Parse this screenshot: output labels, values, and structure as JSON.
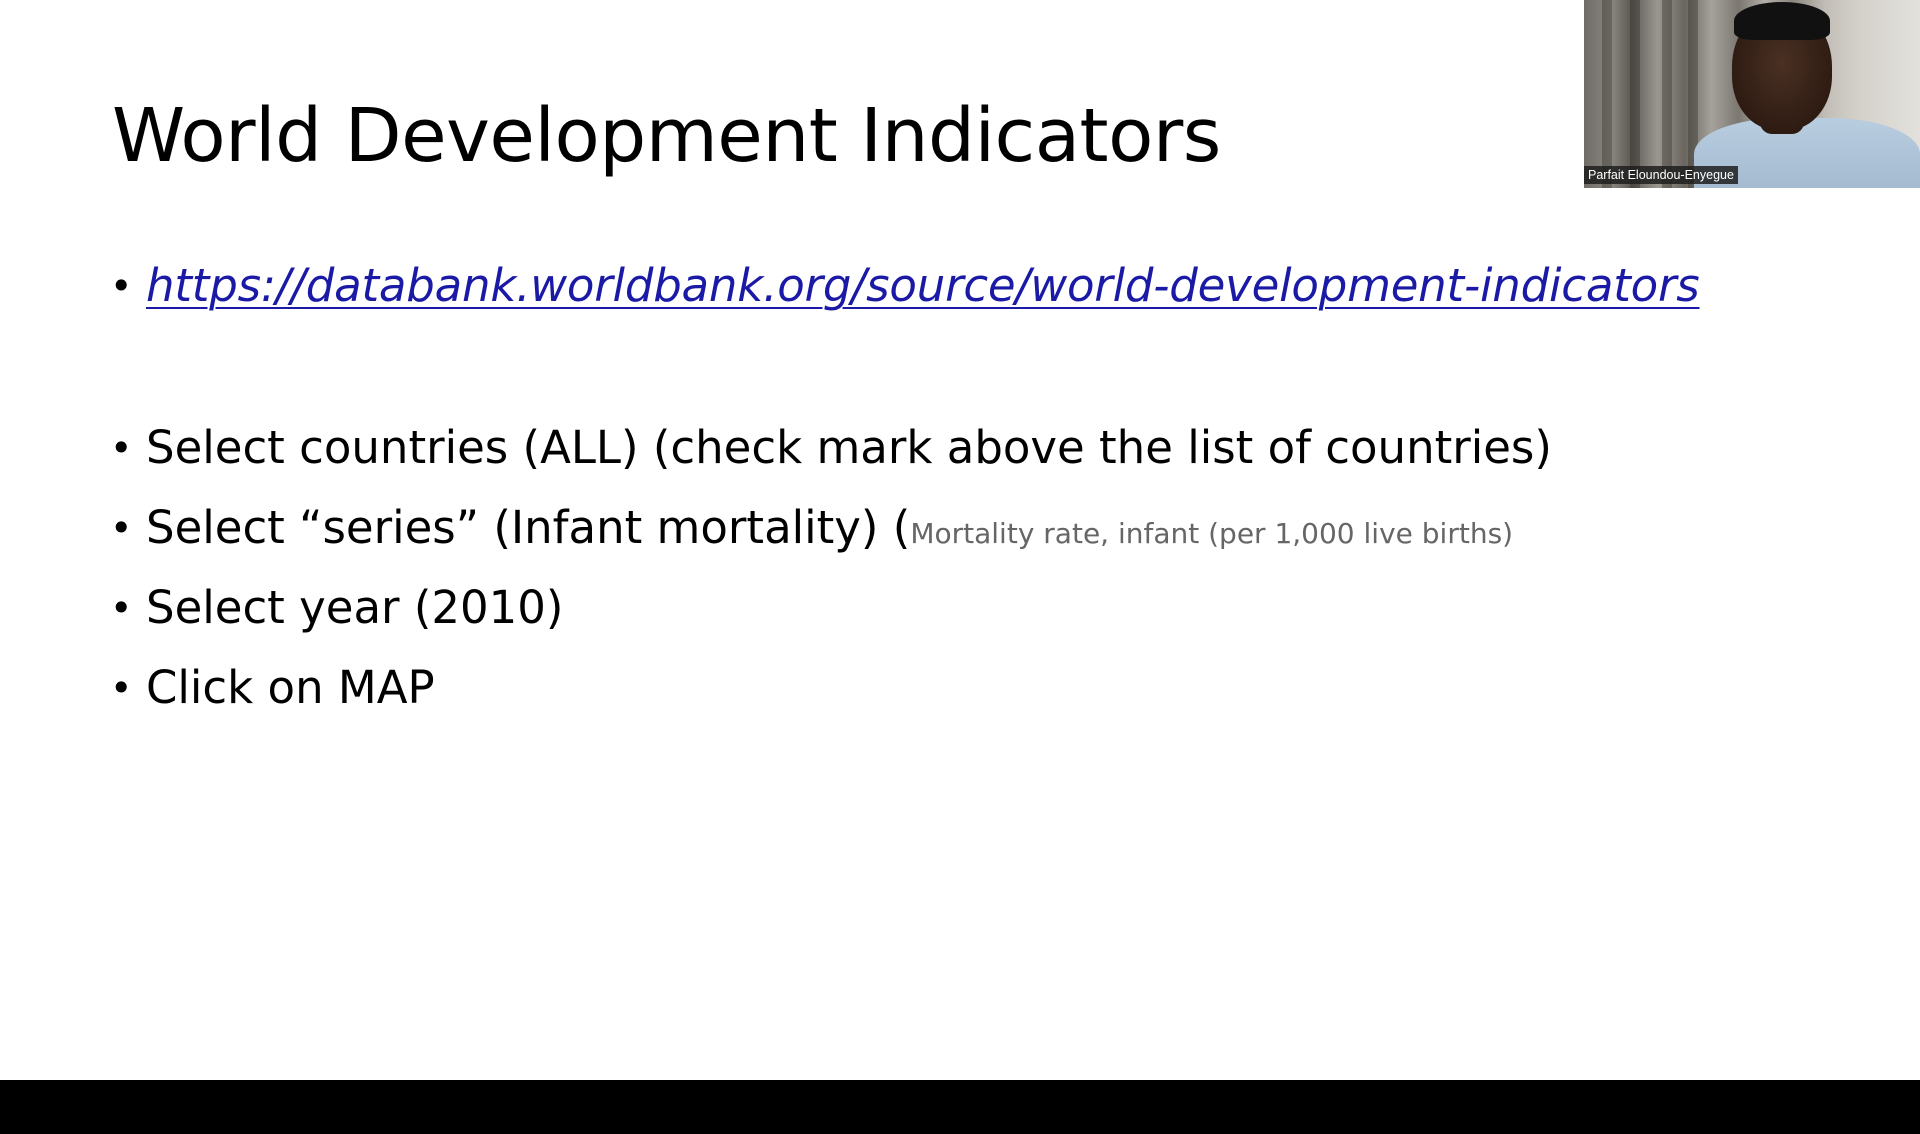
{
  "slide": {
    "title": "World Development Indicators",
    "link": "https://databank.worldbank.org/source/world-development-indicators",
    "bullets": [
      {
        "text": "Select countries (ALL) (check mark above the list of countries)"
      },
      {
        "text": "Select “series” (Infant mortality) (",
        "note": "Mortality rate, infant (per 1,000 live births)"
      },
      {
        "text": "Select year (2010)"
      },
      {
        "text": "Click on MAP"
      }
    ],
    "bullet_symbol": "•"
  },
  "video": {
    "participant_name": "Parfait Eloundou-Enyegue"
  },
  "colors": {
    "link": "#1a1aa6",
    "note": "#666666",
    "background": "#ffffff",
    "bottom_bar": "#000000"
  }
}
